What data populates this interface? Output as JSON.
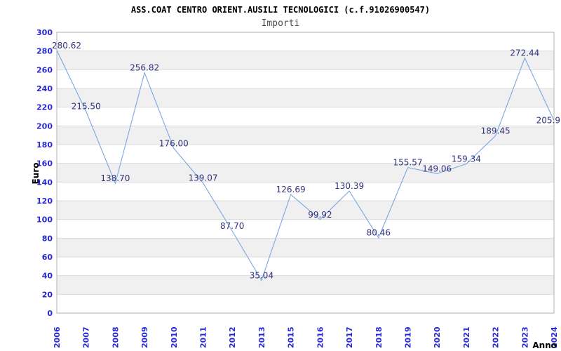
{
  "header": {
    "title": "ASS.COAT CENTRO ORIENT.AUSILI TECNOLOGICI (c.f.91026900547)",
    "subtitle": "Importi"
  },
  "chart_data": {
    "type": "line",
    "title": "ASS.COAT CENTRO ORIENT.AUSILI TECNOLOGICI (c.f.91026900547)",
    "subtitle": "Importi",
    "xlabel": "Anno",
    "ylabel": "Euro",
    "categories": [
      "2006",
      "2007",
      "2008",
      "2009",
      "2010",
      "2011",
      "2012",
      "2013",
      "2015",
      "2016",
      "2017",
      "2018",
      "2019",
      "2020",
      "2021",
      "2022",
      "2023",
      "2024"
    ],
    "values": [
      280.62,
      215.5,
      138.7,
      256.82,
      176.0,
      139.07,
      87.7,
      35.04,
      126.69,
      99.92,
      130.39,
      80.46,
      155.57,
      149.06,
      159.34,
      189.45,
      272.44,
      205.9
    ],
    "point_labels": [
      "280.62",
      "215.50",
      "138.70",
      "256.82",
      "176.00",
      "139.07",
      "87.70",
      "35.04",
      "126.69",
      "99.92",
      "130.39",
      "80.46",
      "155.57",
      "149.06",
      "159.34",
      "189.45",
      "272.44",
      "205.9"
    ],
    "ylim": [
      0,
      300
    ],
    "ytick_step": 20,
    "grid": "alternating horizontal bands, no vertical gridlines",
    "legend": "none",
    "colors": {
      "line": "#79a7e0",
      "tick_label": "#2727d4",
      "value_label": "#32327d",
      "band": "#f0f0f0",
      "gridline": "#dcdcdc",
      "plot_border": "#b0b0b0",
      "title": "#000000",
      "subtitle": "#4d4d4d",
      "axis_title": "#000000"
    }
  }
}
